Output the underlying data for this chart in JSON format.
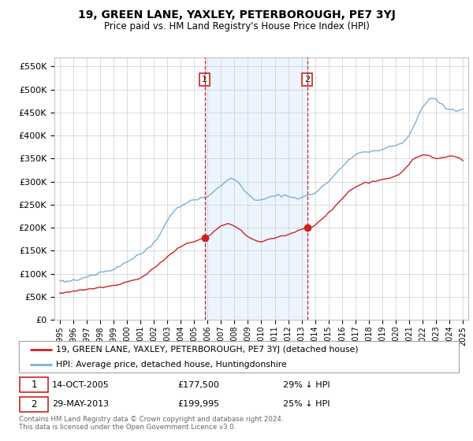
{
  "title": "19, GREEN LANE, YAXLEY, PETERBOROUGH, PE7 3YJ",
  "subtitle": "Price paid vs. HM Land Registry's House Price Index (HPI)",
  "legend_line1": "19, GREEN LANE, YAXLEY, PETERBOROUGH, PE7 3YJ (detached house)",
  "legend_line2": "HPI: Average price, detached house, Huntingdonshire",
  "annotation1_date": "14-OCT-2005",
  "annotation1_price": "£177,500",
  "annotation1_hpi": "29% ↓ HPI",
  "annotation2_date": "29-MAY-2013",
  "annotation2_price": "£199,995",
  "annotation2_hpi": "25% ↓ HPI",
  "footer": "Contains HM Land Registry data © Crown copyright and database right 2024.\nThis data is licensed under the Open Government Licence v3.0.",
  "hpi_color": "#7ab0d4",
  "sale_color": "#cc2222",
  "vline_color": "#cc2222",
  "shade_color": "#ddeeff",
  "ylim": [
    0,
    570000
  ],
  "yticks": [
    0,
    50000,
    100000,
    150000,
    200000,
    250000,
    300000,
    350000,
    400000,
    450000,
    500000,
    550000
  ],
  "sale1_x": 2005.79,
  "sale1_y": 177500,
  "sale2_x": 2013.41,
  "sale2_y": 199995,
  "vline1_x": 2005.79,
  "vline2_x": 2013.41,
  "shade_x1": 2005.79,
  "shade_x2": 2013.41,
  "xlim_left": 1994.6,
  "xlim_right": 2025.4,
  "hpi_years": [
    1995.0,
    1995.08,
    1995.17,
    1995.25,
    1995.33,
    1995.42,
    1995.5,
    1995.58,
    1995.67,
    1995.75,
    1995.83,
    1995.92,
    1996.0,
    1996.25,
    1996.5,
    1996.75,
    1997.0,
    1997.25,
    1997.5,
    1997.75,
    1998.0,
    1998.25,
    1998.5,
    1998.75,
    1999.0,
    1999.25,
    1999.5,
    1999.75,
    2000.0,
    2000.25,
    2000.5,
    2000.75,
    2001.0,
    2001.25,
    2001.5,
    2001.75,
    2002.0,
    2002.25,
    2002.5,
    2002.75,
    2003.0,
    2003.25,
    2003.5,
    2003.75,
    2004.0,
    2004.25,
    2004.5,
    2004.75,
    2005.0,
    2005.25,
    2005.5,
    2005.75,
    2006.0,
    2006.25,
    2006.5,
    2006.75,
    2007.0,
    2007.25,
    2007.5,
    2007.75,
    2008.0,
    2008.25,
    2008.5,
    2008.75,
    2009.0,
    2009.25,
    2009.5,
    2009.75,
    2010.0,
    2010.25,
    2010.5,
    2010.75,
    2011.0,
    2011.25,
    2011.5,
    2011.75,
    2012.0,
    2012.25,
    2012.5,
    2012.75,
    2013.0,
    2013.25,
    2013.5,
    2013.75,
    2014.0,
    2014.25,
    2014.5,
    2014.75,
    2015.0,
    2015.25,
    2015.5,
    2015.75,
    2016.0,
    2016.25,
    2016.5,
    2016.75,
    2017.0,
    2017.25,
    2017.5,
    2017.75,
    2018.0,
    2018.25,
    2018.5,
    2018.75,
    2019.0,
    2019.25,
    2019.5,
    2019.75,
    2020.0,
    2020.25,
    2020.5,
    2020.75,
    2021.0,
    2021.25,
    2021.5,
    2021.75,
    2022.0,
    2022.25,
    2022.5,
    2022.75,
    2023.0,
    2023.25,
    2023.5,
    2023.75,
    2024.0,
    2024.25,
    2024.5,
    2024.75,
    2025.0
  ],
  "hpi_vals": [
    85000,
    84000,
    83500,
    83000,
    82500,
    82000,
    82000,
    82500,
    83000,
    84000,
    85000,
    86000,
    87000,
    88000,
    90000,
    92000,
    94000,
    96000,
    98000,
    100000,
    102000,
    104000,
    106000,
    108000,
    110000,
    114000,
    118000,
    122000,
    126000,
    130000,
    134000,
    138000,
    142000,
    148000,
    154000,
    160000,
    168000,
    178000,
    190000,
    202000,
    214000,
    226000,
    236000,
    244000,
    248000,
    252000,
    255000,
    258000,
    260000,
    263000,
    265000,
    266000,
    268000,
    272000,
    278000,
    285000,
    292000,
    298000,
    303000,
    306000,
    305000,
    300000,
    292000,
    282000,
    272000,
    265000,
    260000,
    258000,
    260000,
    263000,
    265000,
    266000,
    268000,
    270000,
    271000,
    270000,
    268000,
    266000,
    265000,
    265000,
    266000,
    268000,
    270000,
    272000,
    276000,
    282000,
    288000,
    294000,
    300000,
    308000,
    316000,
    324000,
    332000,
    340000,
    348000,
    354000,
    358000,
    362000,
    364000,
    365000,
    366000,
    367000,
    368000,
    368000,
    370000,
    372000,
    374000,
    376000,
    378000,
    382000,
    386000,
    392000,
    400000,
    412000,
    430000,
    448000,
    462000,
    472000,
    478000,
    480000,
    478000,
    472000,
    466000,
    460000,
    456000,
    454000,
    454000,
    456000,
    458000
  ],
  "sale_years": [
    1995.0,
    1995.25,
    1995.5,
    1995.75,
    1996.0,
    1996.25,
    1996.5,
    1996.75,
    1997.0,
    1997.25,
    1997.5,
    1997.75,
    1998.0,
    1998.25,
    1998.5,
    1998.75,
    1999.0,
    1999.25,
    1999.5,
    1999.75,
    2000.0,
    2000.25,
    2000.5,
    2000.75,
    2001.0,
    2001.25,
    2001.5,
    2001.75,
    2002.0,
    2002.25,
    2002.5,
    2002.75,
    2003.0,
    2003.25,
    2003.5,
    2003.75,
    2004.0,
    2004.25,
    2004.5,
    2004.75,
    2005.0,
    2005.25,
    2005.5,
    2005.79,
    2006.0,
    2006.25,
    2006.5,
    2006.75,
    2007.0,
    2007.25,
    2007.5,
    2007.75,
    2008.0,
    2008.25,
    2008.5,
    2008.75,
    2009.0,
    2009.25,
    2009.5,
    2009.75,
    2010.0,
    2010.25,
    2010.5,
    2010.75,
    2011.0,
    2011.25,
    2011.5,
    2011.75,
    2012.0,
    2012.25,
    2012.5,
    2012.75,
    2013.0,
    2013.25,
    2013.41,
    2013.75,
    2014.0,
    2014.25,
    2014.5,
    2014.75,
    2015.0,
    2015.25,
    2015.5,
    2015.75,
    2016.0,
    2016.25,
    2016.5,
    2016.75,
    2017.0,
    2017.25,
    2017.5,
    2017.75,
    2018.0,
    2018.25,
    2018.5,
    2018.75,
    2019.0,
    2019.25,
    2019.5,
    2019.75,
    2020.0,
    2020.25,
    2020.5,
    2020.75,
    2021.0,
    2021.25,
    2021.5,
    2021.75,
    2022.0,
    2022.25,
    2022.5,
    2022.75,
    2023.0,
    2023.25,
    2023.5,
    2023.75,
    2024.0,
    2024.25,
    2024.5,
    2024.75,
    2025.0
  ],
  "sale_vals": [
    58000,
    59000,
    60000,
    61000,
    62000,
    63000,
    64000,
    65000,
    66000,
    67000,
    68000,
    69000,
    70000,
    71000,
    72000,
    73000,
    74000,
    76000,
    78000,
    80000,
    82000,
    84000,
    86000,
    88000,
    90000,
    95000,
    100000,
    106000,
    112000,
    118000,
    124000,
    130000,
    136000,
    142000,
    148000,
    154000,
    158000,
    162000,
    165000,
    168000,
    170000,
    173000,
    176000,
    177500,
    180000,
    185000,
    192000,
    198000,
    203000,
    206000,
    207000,
    206000,
    204000,
    200000,
    194000,
    186000,
    180000,
    176000,
    173000,
    171000,
    170000,
    172000,
    174000,
    176000,
    178000,
    180000,
    182000,
    183000,
    185000,
    188000,
    191000,
    194000,
    196000,
    198000,
    199995,
    202000,
    206000,
    212000,
    218000,
    224000,
    230000,
    238000,
    246000,
    254000,
    262000,
    270000,
    278000,
    284000,
    288000,
    292000,
    295000,
    297000,
    298000,
    300000,
    302000,
    303000,
    304000,
    306000,
    308000,
    310000,
    312000,
    316000,
    322000,
    330000,
    338000,
    346000,
    352000,
    356000,
    358000,
    358000,
    356000,
    353000,
    350000,
    350000,
    352000,
    354000,
    356000,
    356000,
    354000,
    350000,
    345000
  ]
}
